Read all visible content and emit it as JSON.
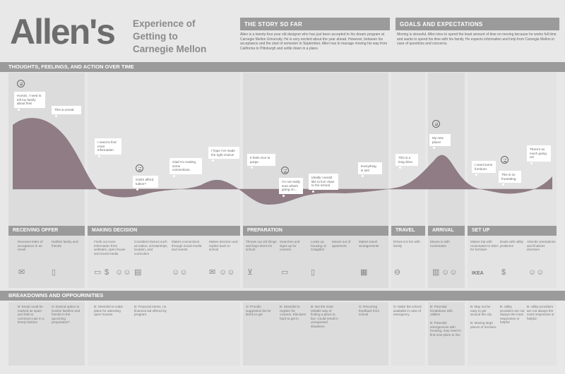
{
  "title": "Allen's",
  "subtitle": "Experience of Getting to Carnegie Mellon",
  "story": {
    "heading": "THE STORY SO FAR",
    "text": "Allen is a twenty-four year old designer who has just been accepted to his dream program at Carnegie Mellon University. He is very excited about the year ahead.  However, between his acceptance and the start of semester in September, Allen has to manage moving his way from California to Pittsburgh and settle down in a place."
  },
  "goals": {
    "heading": "GOALS AND EXPECTATIONS",
    "text": "Moving is stressful, Allen tries to spend the least amount of time on moving because he works full time and wants to spend his time with his family. He expects information and help from Carnegie Mellon in case of questions and concerns."
  },
  "thoughts_heading": "THOUGHTS, FEELINGS, AND ACTION OVER TIME",
  "bubbles": [
    {
      "text": "Hurrah, I need to tell my family about this!"
    },
    {
      "text": "This is unreal."
    },
    {
      "text": "I need to find more information."
    },
    {
      "text": "Gosh! afford tuition?"
    },
    {
      "text": "Glad I'm making some connections."
    },
    {
      "text": "I hope I've made the right choice!"
    },
    {
      "text": "It feels nice to purge."
    },
    {
      "text": "I'm not really sure what's going on..."
    },
    {
      "text": "Ideally I would like to live close to the school."
    },
    {
      "text": "Everything is set!"
    },
    {
      "text": "This is a long drive."
    },
    {
      "text": "My new place!"
    },
    {
      "text": "I need some furniture."
    },
    {
      "text": "This is so frustrating."
    },
    {
      "text": "There's so much going on!"
    }
  ],
  "faces": [
    {
      "name": "happy-face-icon-1"
    },
    {
      "name": "sad-face-icon-1"
    },
    {
      "name": "sad-face-icon-2"
    },
    {
      "name": "happy-face-icon-2"
    },
    {
      "name": "sad-face-icon-3"
    }
  ],
  "stages": [
    {
      "label": "RECEIVING OFFER"
    },
    {
      "label": "MAKING DECISION"
    },
    {
      "label": "PREPARATION"
    },
    {
      "label": "TRAVEL"
    },
    {
      "label": "ARRIVAL"
    },
    {
      "label": "SET UP"
    }
  ],
  "actions": [
    "Receives letter of acceptance in an email",
    "Notifies family and friends",
    "Finds out more information from websites, open house and social media",
    "Considers factors such as tuition, scholarships, location, and curriculum",
    "Makes connections through social media and events",
    "Makes decision and replies back to school",
    "Throws out old things and buys items for school",
    "Searches and signs up for courses",
    "Looks up housing on Craigslist",
    "Moves out of apartment",
    "Makes travel arrangements",
    "Drives 8.5 hrs with family",
    "Moves in with roommates",
    "Makes trip with roommates to IKEA for furniture",
    "Deals with utility problems",
    "Attends orientations and finalizes electives"
  ],
  "icons": [
    {
      "name": "email-icon",
      "glyph": "✉"
    },
    {
      "name": "phone-icon",
      "glyph": "▯"
    },
    {
      "name": "browser-icon",
      "glyph": "▭"
    },
    {
      "name": "money-icon",
      "glyph": "$"
    },
    {
      "name": "people-icon",
      "glyph": "☺☺"
    },
    {
      "name": "document-icon",
      "glyph": "▤"
    },
    {
      "name": "people-icon-2",
      "glyph": "☺☺"
    },
    {
      "name": "email-icon-2",
      "glyph": "✉"
    },
    {
      "name": "people-icon-3",
      "glyph": "☺☺"
    },
    {
      "name": "cart-icon",
      "glyph": "⊻"
    },
    {
      "name": "laptop-icon",
      "glyph": "▭"
    },
    {
      "name": "phone-icon-2",
      "glyph": "▯"
    },
    {
      "name": "calendar-icon",
      "glyph": "▦"
    },
    {
      "name": "car-icon",
      "glyph": "⊖"
    },
    {
      "name": "building-icon",
      "glyph": "▥"
    },
    {
      "name": "people-icon-4",
      "glyph": "☺☺"
    },
    {
      "name": "ikea-logo",
      "glyph": "IKEA"
    },
    {
      "name": "money-icon-2",
      "glyph": "$"
    },
    {
      "name": "people-icon-5",
      "glyph": "☺☺"
    }
  ],
  "breakdowns_heading": "BREAKDOWNS AND OPPOURINITIES",
  "breakdowns": [
    "B: Email could be marked as spam and fails to communi-cate in a timely fashion",
    "O: Extend option to involve families and friends in the upcoming preparation?",
    "B: Stressful to make plans for attending open houses",
    "B: Financial stress, no financial aid offered by program.",
    "O: Provide suggestion list for items to get",
    "B: Stressful to register for courses. Electives hard to get in",
    "B: Not the most reliable way of finding a place to live. Could result in unexpected situations.",
    "O: Recurring feedback from school",
    "O: Make the school available in case of emergency",
    "B: Potential breakdown with utilities",
    "B: Potential emergencies with housing, may need to find new place to live",
    "B: May not be easy to get around the city",
    "B: Moving large pieces of furniture",
    "B: Utility providers are not always the most responsive or helpful",
    "B: Utility providers are not always the most responsive or helpful"
  ]
}
